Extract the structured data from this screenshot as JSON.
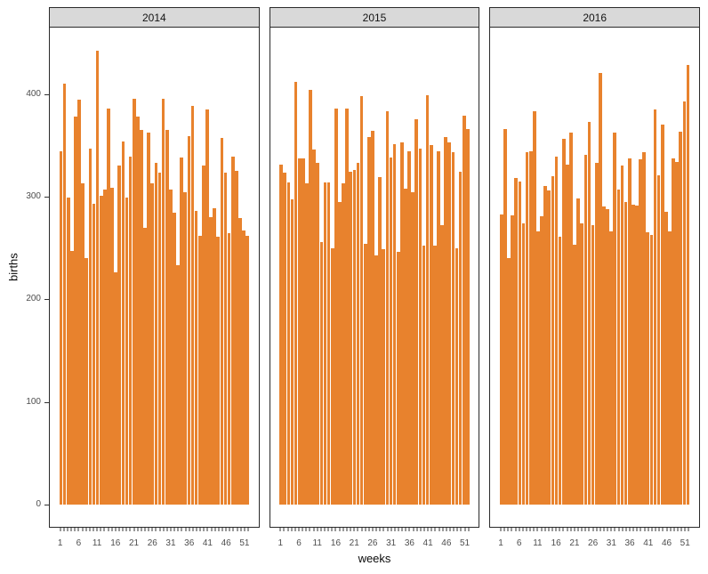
{
  "style": {
    "background": "#ffffff",
    "bar_color": "#e8822d",
    "strip_background": "#d9d9d9",
    "panel_border": "#2a2a2a",
    "tick_text_color": "#4d4d4d",
    "axis_title_color": "#0a0a0a"
  },
  "chart_data": {
    "type": "bar",
    "title": "",
    "xlabel": "weeks",
    "ylabel": "births",
    "ylim": [
      0,
      465
    ],
    "grid": "off",
    "legend": "none",
    "y_ticks": [
      0,
      100,
      200,
      300,
      400
    ],
    "x_labeled_weeks": [
      1,
      6,
      11,
      16,
      21,
      26,
      31,
      36,
      41,
      46,
      51
    ],
    "weeks_per_facet": 52,
    "facets": [
      {
        "label": "2014",
        "values": [
          344,
          410,
          299,
          247,
          378,
          394,
          313,
          240,
          347,
          293,
          442,
          301,
          307,
          386,
          309,
          226,
          330,
          354,
          299,
          339,
          395,
          378,
          365,
          270,
          362,
          313,
          333,
          323,
          395,
          365,
          307,
          284,
          233,
          338,
          304,
          359,
          388,
          286,
          262,
          330,
          385,
          280,
          289,
          261,
          357,
          323,
          264,
          339,
          325,
          279,
          267,
          262
        ]
      },
      {
        "label": "2015",
        "values": [
          331,
          323,
          314,
          297,
          412,
          337,
          337,
          313,
          404,
          346,
          333,
          256,
          314,
          314,
          250,
          386,
          295,
          313,
          386,
          324,
          326,
          333,
          398,
          254,
          358,
          364,
          243,
          319,
          249,
          383,
          338,
          351,
          246,
          353,
          308,
          344,
          304,
          375,
          347,
          252,
          399,
          350,
          252,
          344,
          272,
          358,
          353,
          343,
          250,
          324,
          379,
          366
        ]
      },
      {
        "label": "2016",
        "values": [
          283,
          366,
          240,
          282,
          318,
          315,
          274,
          343,
          344,
          383,
          266,
          281,
          310,
          306,
          320,
          339,
          261,
          356,
          331,
          362,
          253,
          298,
          274,
          341,
          373,
          272,
          333,
          420,
          290,
          288,
          266,
          362,
          307,
          330,
          295,
          337,
          292,
          291,
          336,
          343,
          265,
          263,
          385,
          321,
          370,
          285,
          266,
          337,
          334,
          363,
          393,
          428
        ]
      }
    ]
  }
}
